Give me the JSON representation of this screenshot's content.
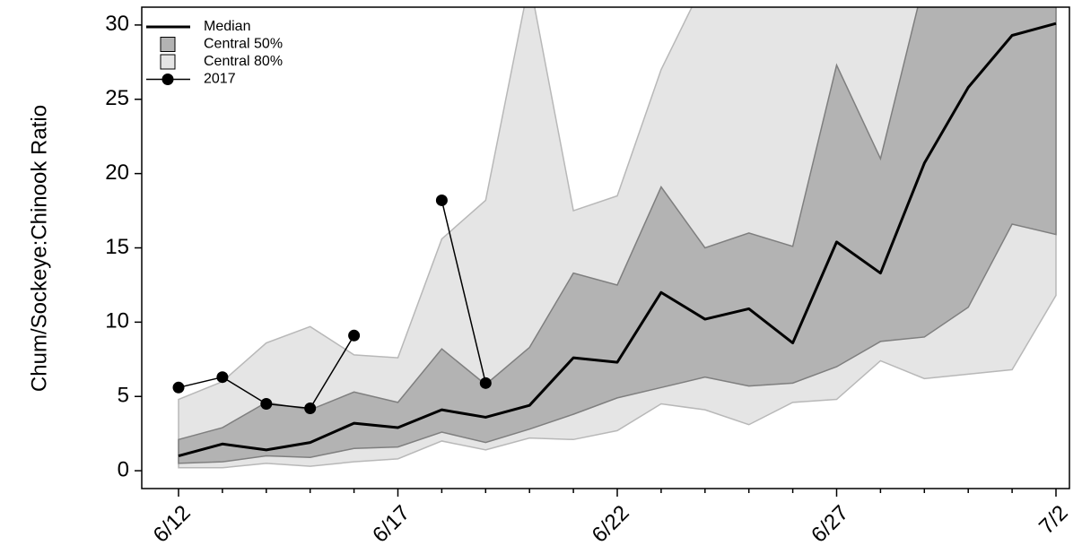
{
  "chart_data": {
    "type": "band-line",
    "y_label": "Chum/Sockeye:Chinook Ratio",
    "categories": [
      "6/12",
      null,
      null,
      null,
      null,
      "6/17",
      null,
      null,
      null,
      null,
      "6/22",
      null,
      null,
      null,
      null,
      "6/27",
      null,
      null,
      null,
      null,
      "7/2"
    ],
    "ylim": [
      -1.2,
      31.2
    ],
    "yticks": [
      0,
      5,
      10,
      15,
      20,
      25,
      30
    ],
    "bands": [
      {
        "name": "Central 80%",
        "color": "#e5e5e5",
        "stroke": "#b8b8b8",
        "lower": [
          0.2,
          0.2,
          0.5,
          0.3,
          0.6,
          0.8,
          2.0,
          1.4,
          2.2,
          2.1,
          2.7,
          4.5,
          4.1,
          3.1,
          4.6,
          4.8,
          7.4,
          6.2,
          6.5,
          6.8,
          11.8
        ],
        "upper": [
          4.8,
          6.0,
          8.6,
          9.7,
          7.8,
          7.6,
          15.6,
          18.2,
          33,
          17.5,
          18.5,
          27.0,
          33,
          33,
          33,
          33,
          33,
          33,
          33,
          33,
          33
        ]
      },
      {
        "name": "Central 50%",
        "color": "#b3b3b3",
        "stroke": "#7f7f7f",
        "lower": [
          0.5,
          0.6,
          1.0,
          0.9,
          1.5,
          1.6,
          2.6,
          1.9,
          2.8,
          3.8,
          4.9,
          5.6,
          6.3,
          5.7,
          5.9,
          7.0,
          8.7,
          9.0,
          11.0,
          16.6,
          15.9
        ],
        "upper": [
          2.1,
          2.9,
          4.6,
          4.1,
          5.3,
          4.6,
          8.2,
          5.8,
          8.3,
          13.3,
          12.5,
          19.1,
          15.0,
          16.0,
          15.1,
          27.3,
          21.0,
          33,
          33,
          33,
          33
        ]
      }
    ],
    "series": [
      {
        "name": "Median",
        "color": "#000000",
        "width": 3,
        "values": [
          1.0,
          1.8,
          1.4,
          1.9,
          3.2,
          2.9,
          4.1,
          3.6,
          4.4,
          7.6,
          7.3,
          12.0,
          10.2,
          10.9,
          8.6,
          15.4,
          13.3,
          20.7,
          25.8,
          29.3,
          30.1
        ]
      },
      {
        "name": "2017",
        "color": "#000000",
        "width": 1.5,
        "marker": true,
        "values": [
          5.6,
          6.3,
          4.5,
          4.2,
          9.1,
          null,
          18.2,
          5.9,
          null,
          null,
          null,
          null,
          null,
          null,
          null,
          null,
          null,
          null,
          null,
          null,
          null
        ]
      }
    ]
  }
}
